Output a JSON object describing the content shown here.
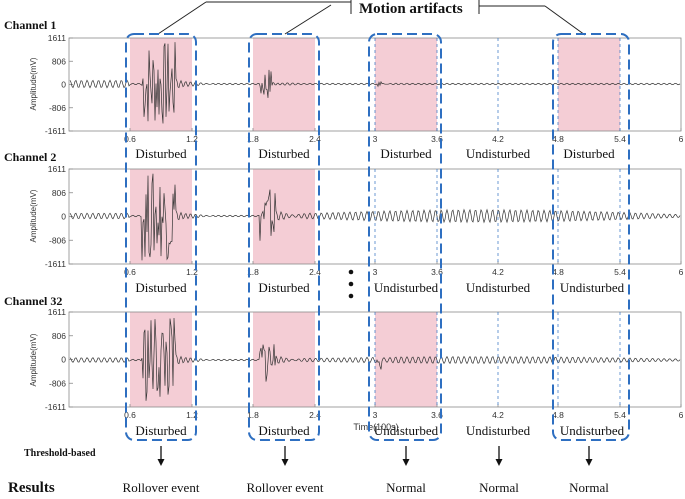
{
  "title": "Motion artifacts",
  "time_axis_label": "Time(100s)",
  "amplitude_axis_label": "Amplitude(mV)",
  "y_ticks": [
    "1611",
    "806",
    "0",
    "-806",
    "-1611"
  ],
  "x_ticks": [
    "0.6",
    "1.2",
    "1.8",
    "2.4",
    "3",
    "3.6",
    "4.2",
    "4.8",
    "5.4",
    "6"
  ],
  "channels": [
    {
      "name": "Channel 1",
      "states": [
        "Disturbed",
        "Disturbed",
        "Disturbed",
        "Undisturbed",
        "Disturbed"
      ]
    },
    {
      "name": "Channel 2",
      "states": [
        "Disturbed",
        "Disturbed",
        "Undisturbed",
        "Undisturbed",
        "Undisturbed"
      ]
    },
    {
      "name": "Channel 32",
      "states": [
        "Disturbed",
        "Disturbed",
        "Undisturbed",
        "Undisturbed",
        "Undisturbed"
      ]
    }
  ],
  "threshold_label": "Threshold-based",
  "results_label": "Results",
  "results": [
    "Rollover event",
    "Rollover event",
    "Normal",
    "Normal",
    "Normal"
  ],
  "colors": {
    "shade": "#f4cdd5",
    "dash": "#2e6fc1",
    "signal": "#333333",
    "axis": "#8a8a8a"
  }
}
